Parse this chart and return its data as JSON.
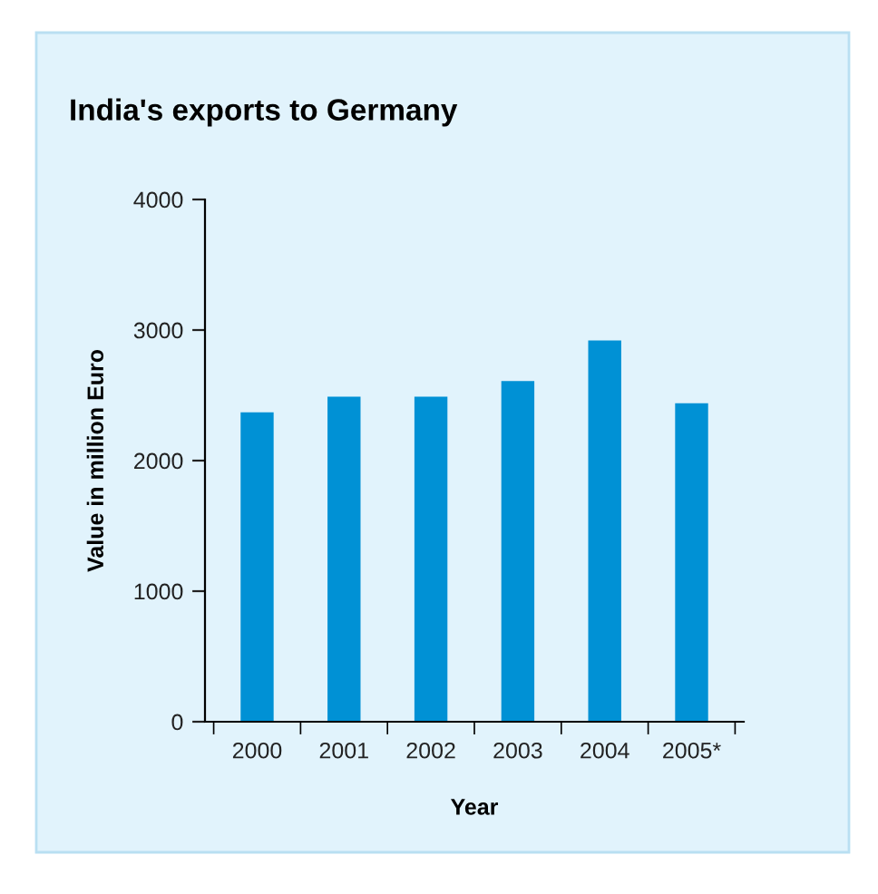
{
  "chart_data": {
    "type": "bar",
    "title": "India's exports to Germany",
    "xlabel": "Year",
    "ylabel": "Value in million Euro",
    "categories": [
      "2000",
      "2001",
      "2002",
      "2003",
      "2004",
      "2005*"
    ],
    "values": [
      2370,
      2490,
      2490,
      2610,
      2920,
      2440
    ],
    "color": "#0091d5",
    "ylim": [
      0,
      4000
    ],
    "yticks": [
      0,
      1000,
      2000,
      3000,
      4000
    ],
    "grid": false
  }
}
